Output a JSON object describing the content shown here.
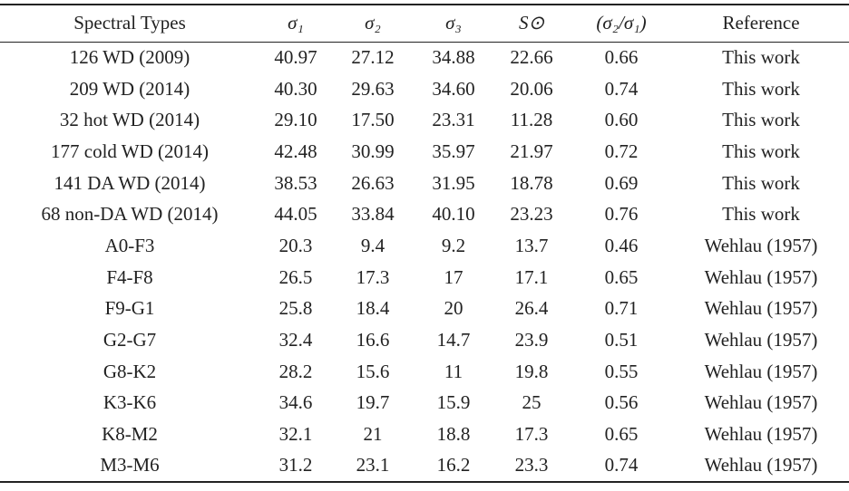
{
  "table": {
    "header": [
      "Spectral Types",
      "σ₁",
      "σ₂",
      "σ₃",
      "S⊙",
      "(σ₂/σ₁)",
      "Reference"
    ],
    "rows": [
      [
        "126 WD (2009)",
        "40.97",
        "27.12",
        "34.88",
        "22.66",
        "0.66",
        "This work"
      ],
      [
        "209 WD (2014)",
        "40.30",
        "29.63",
        "34.60",
        "20.06",
        "0.74",
        "This work"
      ],
      [
        "32 hot WD (2014)",
        "29.10",
        "17.50",
        "23.31",
        "11.28",
        "0.60",
        "This work"
      ],
      [
        "177 cold WD (2014)",
        "42.48",
        "30.99",
        "35.97",
        "21.97",
        "0.72",
        "This work"
      ],
      [
        "141 DA WD (2014)",
        "38.53",
        "26.63",
        "31.95",
        "18.78",
        "0.69",
        "This work"
      ],
      [
        "68 non-DA WD (2014)",
        "44.05",
        "33.84",
        "40.10",
        "23.23",
        "0.76",
        "This work"
      ],
      [
        "A0-F3",
        "20.3",
        "9.4",
        "9.2",
        "13.7",
        "0.46",
        "Wehlau (1957)"
      ],
      [
        "F4-F8",
        "26.5",
        "17.3",
        "17",
        "17.1",
        "0.65",
        "Wehlau (1957)"
      ],
      [
        "F9-G1",
        "25.8",
        "18.4",
        "20",
        "26.4",
        "0.71",
        "Wehlau (1957)"
      ],
      [
        "G2-G7",
        "32.4",
        "16.6",
        "14.7",
        "23.9",
        "0.51",
        "Wehlau (1957)"
      ],
      [
        "G8-K2",
        "28.2",
        "15.6",
        "11",
        "19.8",
        "0.55",
        "Wehlau (1957)"
      ],
      [
        "K3-K6",
        "34.6",
        "19.7",
        "15.9",
        "25",
        "0.56",
        "Wehlau (1957)"
      ],
      [
        "K8-M2",
        "32.1",
        "21",
        "18.8",
        "17.3",
        "0.65",
        "Wehlau (1957)"
      ],
      [
        "M3-M6",
        "31.2",
        "23.1",
        "16.2",
        "23.3",
        "0.74",
        "Wehlau (1957)"
      ]
    ]
  }
}
